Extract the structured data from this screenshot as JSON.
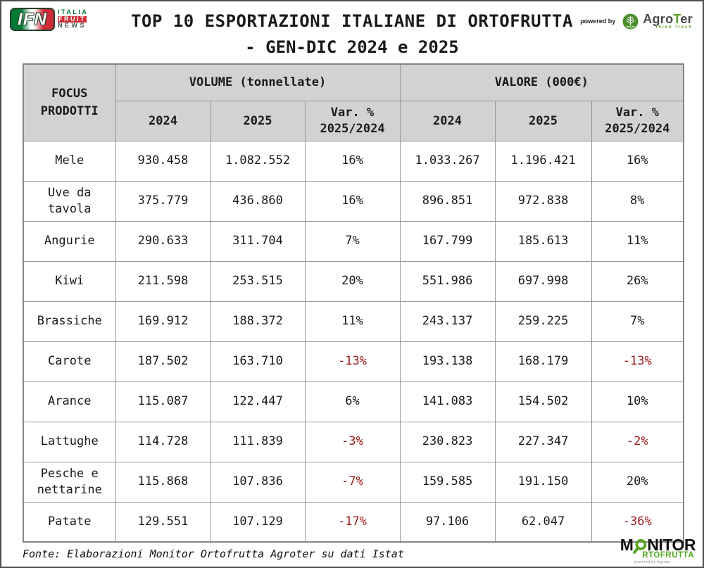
{
  "page": {
    "title_line1": "TOP 10 ESPORTAZIONI ITALIANE DI ORTOFRUTTA",
    "title_line2": "- GEN-DIC 2024 e 2025"
  },
  "branding": {
    "ifn": {
      "abbr": "IFN",
      "word1": "ITALIA",
      "word2": "FRUIT",
      "word3": "NEWS"
    },
    "powered_by": "powered by",
    "agroter_name_pre": "Agro",
    "agroter_name_t": "T",
    "agroter_name_post": "er",
    "agroter_tagline": "think fresh",
    "monitor_m": "M",
    "monitor_nitor": "NITOR",
    "monitor_line2": "RTOFRUTTA",
    "monitor_powered": "powered by Agroter"
  },
  "table": {
    "focus_line1": "FOCUS",
    "focus_line2": "PRODOTTI",
    "group_volume": "VOLUME (tonnellate)",
    "group_valore": "VALORE (000€)",
    "sub_2024": "2024",
    "sub_2025": "2025",
    "sub_var_line1": "Var. %",
    "sub_var_line2": "2025/2024",
    "rows": [
      {
        "name": "Mele",
        "vol_2024": "930.458",
        "vol_2025": "1.082.552",
        "vol_var": "16%",
        "val_2024": "1.033.267",
        "val_2025": "1.196.421",
        "val_var": "16%"
      },
      {
        "name": "Uve da tavola",
        "vol_2024": "375.779",
        "vol_2025": "436.860",
        "vol_var": "16%",
        "val_2024": "896.851",
        "val_2025": "972.838",
        "val_var": "8%"
      },
      {
        "name": "Angurie",
        "vol_2024": "290.633",
        "vol_2025": "311.704",
        "vol_var": "7%",
        "val_2024": "167.799",
        "val_2025": "185.613",
        "val_var": "11%"
      },
      {
        "name": "Kiwi",
        "vol_2024": "211.598",
        "vol_2025": "253.515",
        "vol_var": "20%",
        "val_2024": "551.986",
        "val_2025": "697.998",
        "val_var": "26%"
      },
      {
        "name": "Brassiche",
        "vol_2024": "169.912",
        "vol_2025": "188.372",
        "vol_var": "11%",
        "val_2024": "243.137",
        "val_2025": "259.225",
        "val_var": "7%"
      },
      {
        "name": "Carote",
        "vol_2024": "187.502",
        "vol_2025": "163.710",
        "vol_var": "-13%",
        "val_2024": "193.138",
        "val_2025": "168.179",
        "val_var": "-13%"
      },
      {
        "name": "Arance",
        "vol_2024": "115.087",
        "vol_2025": "122.447",
        "vol_var": "6%",
        "val_2024": "141.083",
        "val_2025": "154.502",
        "val_var": "10%"
      },
      {
        "name": "Lattughe",
        "vol_2024": "114.728",
        "vol_2025": "111.839",
        "vol_var": "-3%",
        "val_2024": "230.823",
        "val_2025": "227.347",
        "val_var": "-2%"
      },
      {
        "name": "Pesche e nettarine",
        "vol_2024": "115.868",
        "vol_2025": "107.836",
        "vol_var": "-7%",
        "val_2024": "159.585",
        "val_2025": "191.150",
        "val_var": "20%"
      },
      {
        "name": "Patate",
        "vol_2024": "129.551",
        "vol_2025": "107.129",
        "vol_var": "-17%",
        "val_2024": "97.106",
        "val_2025": "62.047",
        "val_var": "-36%"
      }
    ]
  },
  "footer": {
    "source": "Fonte: Elaborazioni Monitor Ortofrutta Agroter su dati Istat"
  },
  "colors": {
    "negative_red": "#9c1b1b",
    "header_gray": "#d3d1d1",
    "ifn_green": "#017a36",
    "ifn_red": "#ce2b37",
    "agroter_green": "#5a9e26",
    "monitor_green": "#52a71e"
  },
  "chart_data": {
    "type": "table",
    "title": "TOP 10 ESPORTAZIONI ITALIANE DI ORTOFRUTTA - GEN-DIC 2024 e 2025",
    "column_groups": [
      "VOLUME (tonnellate)",
      "VALORE (000€)"
    ],
    "columns": [
      "FOCUS PRODOTTI",
      "Volume 2024 (t)",
      "Volume 2025 (t)",
      "Volume Var. % 2025/2024",
      "Valore 2024 (000€)",
      "Valore 2025 (000€)",
      "Valore Var. % 2025/2024"
    ],
    "rows": [
      [
        "Mele",
        930458,
        1082552,
        16,
        1033267,
        1196421,
        16
      ],
      [
        "Uve da tavola",
        375779,
        436860,
        16,
        896851,
        972838,
        8
      ],
      [
        "Angurie",
        290633,
        311704,
        7,
        167799,
        185613,
        11
      ],
      [
        "Kiwi",
        211598,
        253515,
        20,
        551986,
        697998,
        26
      ],
      [
        "Brassiche",
        169912,
        188372,
        11,
        243137,
        259225,
        7
      ],
      [
        "Carote",
        187502,
        163710,
        -13,
        193138,
        168179,
        -13
      ],
      [
        "Arance",
        115087,
        122447,
        6,
        141083,
        154502,
        10
      ],
      [
        "Lattughe",
        114728,
        111839,
        -3,
        230823,
        227347,
        -2
      ],
      [
        "Pesche e nettarine",
        115868,
        107836,
        -7,
        159585,
        191150,
        20
      ],
      [
        "Patate",
        129551,
        107129,
        -17,
        97106,
        62047,
        -36
      ]
    ],
    "source": "Fonte: Elaborazioni Monitor Ortofrutta Agroter su dati Istat"
  }
}
